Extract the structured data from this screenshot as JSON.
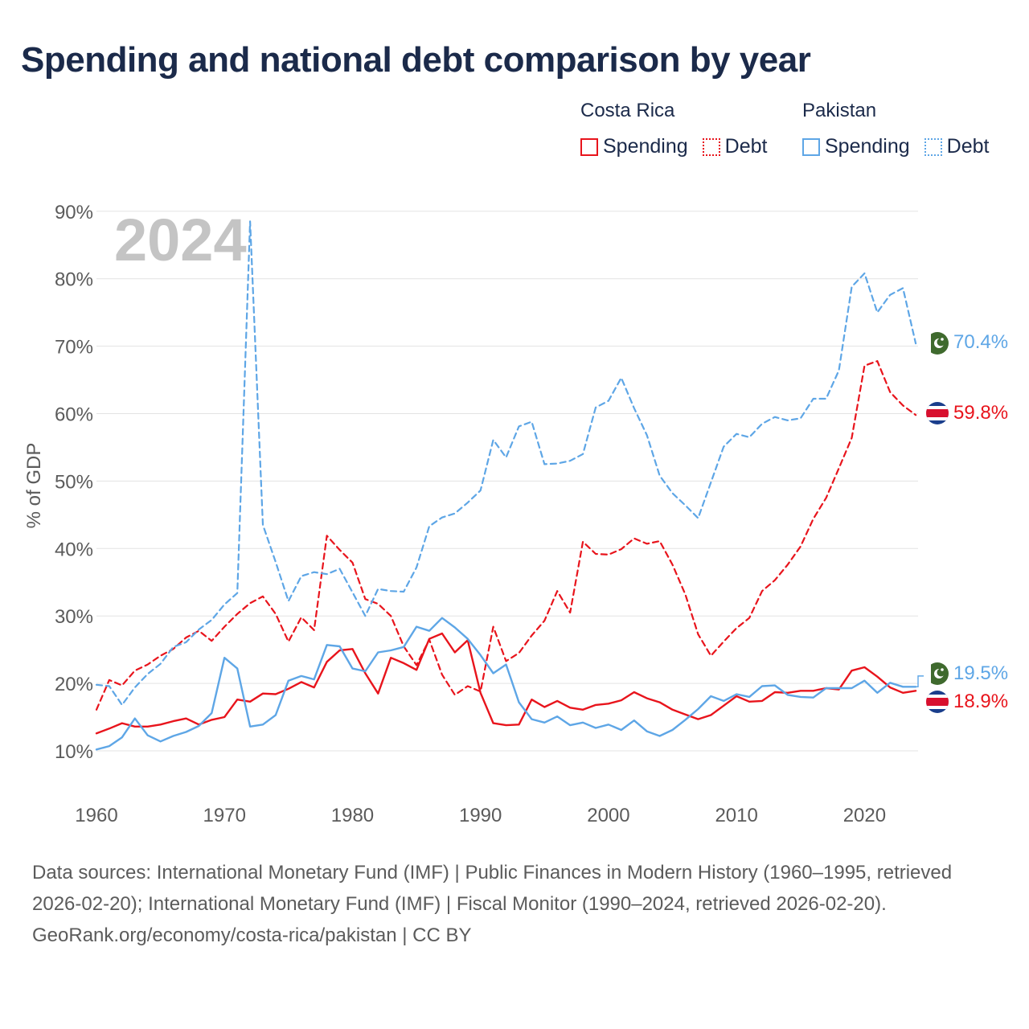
{
  "title": "Spending and national debt comparison by year",
  "legend": {
    "groups": [
      {
        "name": "Costa Rica",
        "color": "#e8141c",
        "items": [
          "Spending",
          "Debt"
        ]
      },
      {
        "name": "Pakistan",
        "color": "#5ea6e6",
        "items": [
          "Spending",
          "Debt"
        ]
      }
    ]
  },
  "chart_data": {
    "type": "line",
    "ylabel": "% of GDP",
    "xlabel": "",
    "year_watermark": "2024",
    "xlim": [
      1960,
      2025
    ],
    "ylim": [
      5,
      95
    ],
    "x_ticks": [
      "1960",
      "1970",
      "1980",
      "1990",
      "2000",
      "2010",
      "2020"
    ],
    "y_ticks": [
      "10%",
      "20%",
      "30%",
      "40%",
      "50%",
      "60%",
      "70%",
      "80%",
      "90%"
    ],
    "end_labels": [
      {
        "text": "70.4%",
        "country": "Pakistan",
        "value": 70.4
      },
      {
        "text": "59.8%",
        "country": "Costa Rica",
        "value": 59.8
      },
      {
        "text": "19.5%",
        "country": "Pakistan",
        "value": 19.5
      },
      {
        "text": "18.9%",
        "country": "Costa Rica",
        "value": 18.9
      }
    ],
    "series": [
      {
        "name": "Costa Rica Spending",
        "country": "Costa Rica",
        "metric": "Spending",
        "color": "#e8141c",
        "dash": false,
        "start": 1960,
        "values": [
          12.6,
          13.3,
          14.1,
          13.6,
          13.6,
          13.9,
          14.4,
          14.8,
          13.9,
          14.6,
          15.0,
          17.6,
          17.3,
          18.5,
          18.4,
          19.2,
          20.2,
          19.4,
          23.2,
          24.9,
          25.1,
          21.5,
          18.5,
          23.8,
          23.0,
          22.0,
          26.6,
          27.4,
          24.6,
          26.4,
          18.6,
          14.1,
          13.8,
          13.9,
          17.6,
          16.5,
          17.4,
          16.4,
          16.1,
          16.8,
          17.0,
          17.5,
          18.7,
          17.8,
          17.2,
          16.1,
          15.4,
          14.7,
          15.3,
          16.7,
          18.1,
          17.3,
          17.4,
          18.7,
          18.6,
          18.9,
          18.9,
          19.3,
          19.1,
          21.9,
          22.4,
          21.0,
          19.4,
          18.6,
          18.9
        ]
      },
      {
        "name": "Costa Rica Debt",
        "country": "Costa Rica",
        "metric": "Debt",
        "color": "#e8141c",
        "dash": true,
        "start": 1960,
        "values": [
          16.1,
          20.5,
          19.7,
          21.9,
          22.8,
          24.1,
          25.1,
          26.8,
          27.8,
          26.3,
          28.4,
          30.3,
          31.9,
          32.9,
          30.3,
          26.2,
          29.8,
          27.9,
          41.9,
          39.8,
          37.9,
          32.5,
          31.8,
          30.0,
          25.5,
          22.7,
          26.5,
          21.3,
          18.3,
          19.6,
          18.8,
          28.4,
          23.3,
          24.5,
          27.1,
          29.3,
          33.7,
          30.5,
          41.0,
          39.2,
          39.1,
          39.9,
          41.5,
          40.7,
          41.1,
          37.6,
          33.2,
          27.3,
          24.1,
          26.2,
          28.2,
          29.7,
          33.7,
          35.3,
          37.6,
          40.3,
          44.4,
          47.5,
          51.9,
          56.4,
          67.1,
          67.8,
          63.2,
          61.2,
          59.8
        ]
      },
      {
        "name": "Pakistan Spending",
        "country": "Pakistan",
        "metric": "Spending",
        "color": "#5ea6e6",
        "dash": false,
        "start": 1960,
        "values": [
          10.2,
          10.7,
          12.0,
          14.8,
          12.3,
          11.4,
          12.2,
          12.8,
          13.7,
          15.6,
          23.8,
          22.2,
          13.6,
          13.9,
          15.3,
          20.4,
          21.1,
          20.6,
          25.7,
          25.5,
          22.2,
          21.8,
          24.6,
          24.9,
          25.4,
          28.4,
          27.8,
          29.7,
          28.3,
          26.6,
          24.2,
          21.5,
          22.8,
          17.2,
          14.7,
          14.2,
          15.1,
          13.8,
          14.2,
          13.4,
          13.9,
          13.1,
          14.5,
          12.9,
          12.2,
          13.1,
          14.6,
          16.2,
          18.1,
          17.4,
          18.4,
          18.0,
          19.6,
          19.7,
          18.3,
          18.0,
          17.9,
          19.3,
          19.3,
          19.3,
          20.4,
          18.6,
          20.1,
          19.5,
          19.5
        ]
      },
      {
        "name": "Pakistan Debt",
        "country": "Pakistan",
        "metric": "Debt",
        "color": "#5ea6e6",
        "dash": true,
        "start": 1960,
        "values": [
          19.8,
          19.6,
          16.8,
          19.4,
          21.4,
          22.9,
          25.4,
          26.1,
          28.0,
          29.4,
          31.7,
          33.4,
          88.5,
          43.5,
          38.0,
          32.2,
          35.9,
          36.5,
          36.2,
          37.0,
          33.5,
          30.0,
          34.0,
          33.7,
          33.6,
          37.2,
          43.3,
          44.6,
          45.2,
          46.8,
          48.6,
          56.1,
          53.5,
          58.1,
          58.8,
          52.5,
          52.6,
          53.0,
          54.0,
          60.9,
          61.9,
          65.3,
          60.8,
          56.8,
          50.8,
          48.2,
          46.4,
          44.5,
          49.8,
          55.1,
          57.0,
          56.5,
          58.5,
          59.5,
          59.0,
          59.3,
          62.2,
          62.2,
          66.4,
          78.8,
          80.8,
          75.0,
          77.6,
          78.6,
          70.4
        ]
      }
    ]
  },
  "footer": {
    "sources": "Data sources: International Monetary Fund (IMF) | Public Finances in Modern History (1960–1995, retrieved 2026-02-20); International Monetary Fund (IMF) | Fiscal Monitor (1990–2024, retrieved 2026-02-20).",
    "credit": "GeoRank.org/economy/costa-rica/pakistan | CC BY"
  }
}
